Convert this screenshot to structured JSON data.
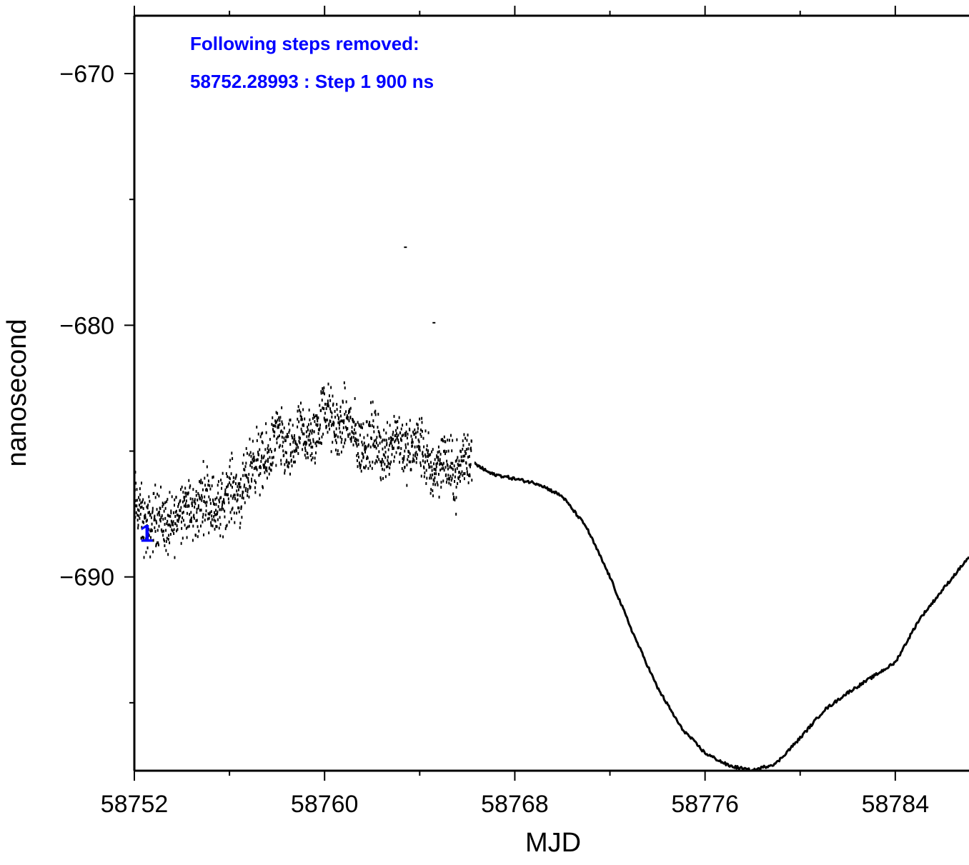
{
  "chart_data": {
    "type": "line",
    "xlabel": "MJD",
    "ylabel": "nanosecond",
    "xlim": [
      58752,
      58787.1
    ],
    "ylim": [
      -697.7,
      -667.7
    ],
    "x_major_ticks": [
      58752,
      58760,
      58768,
      58776,
      58784
    ],
    "x_tick_labels": [
      "58752",
      "58760",
      "58768",
      "58776",
      "58784"
    ],
    "x_minor_ticks": [
      58756,
      58764,
      58772,
      58780
    ],
    "y_major_ticks": [
      -670,
      -680,
      -690
    ],
    "y_tick_labels": [
      "−670",
      "−680",
      "−690"
    ],
    "y_minor_ticks": [
      -675,
      -685,
      -695
    ],
    "grid": false,
    "annotations": [
      {
        "text": "Following steps removed:",
        "color": "#0000ff"
      },
      {
        "text": "58752.28993 : Step 1 900 ns",
        "color": "#0000ff"
      }
    ],
    "step_markers": [
      {
        "label": "1",
        "x": 58752.29,
        "y": -688.2,
        "color": "#0000ff"
      }
    ],
    "series": [
      {
        "style": "scatter-dashes",
        "color": "#000000",
        "x_range": [
          58752,
          58766.2
        ],
        "trend": [
          [
            58752.0,
            -687.5
          ],
          [
            58753.0,
            -687.6
          ],
          [
            58754.0,
            -687.6
          ],
          [
            58755.0,
            -687.2
          ],
          [
            58756.0,
            -686.6
          ],
          [
            58757.0,
            -685.9
          ],
          [
            58758.0,
            -684.9
          ],
          [
            58759.0,
            -684.4
          ],
          [
            58760.0,
            -683.8
          ],
          [
            58761.0,
            -684.3
          ],
          [
            58762.0,
            -684.5
          ],
          [
            58763.0,
            -684.8
          ],
          [
            58764.0,
            -685.2
          ],
          [
            58765.0,
            -685.4
          ],
          [
            58766.0,
            -685.6
          ]
        ],
        "spread_ns": 1.2,
        "outliers": [
          [
            58763.4,
            -676.9
          ],
          [
            58764.6,
            -679.9
          ]
        ]
      },
      {
        "style": "line",
        "color": "#000000",
        "points": [
          [
            58766.3,
            -685.5
          ],
          [
            58767.0,
            -685.9
          ],
          [
            58768.0,
            -686.1
          ],
          [
            58769.0,
            -686.3
          ],
          [
            58770.0,
            -686.8
          ],
          [
            58771.0,
            -688.0
          ],
          [
            58772.0,
            -690.0
          ],
          [
            58773.0,
            -692.3
          ],
          [
            58774.0,
            -694.4
          ],
          [
            58775.0,
            -696.0
          ],
          [
            58776.0,
            -697.0
          ],
          [
            58777.0,
            -697.5
          ],
          [
            58778.0,
            -697.7
          ],
          [
            58779.0,
            -697.4
          ],
          [
            58780.0,
            -696.4
          ],
          [
            58781.0,
            -695.3
          ],
          [
            58782.0,
            -694.6
          ],
          [
            58783.0,
            -694.0
          ],
          [
            58784.0,
            -693.4
          ],
          [
            58785.0,
            -691.7
          ],
          [
            58786.0,
            -690.5
          ],
          [
            58787.1,
            -689.2
          ]
        ]
      }
    ]
  }
}
